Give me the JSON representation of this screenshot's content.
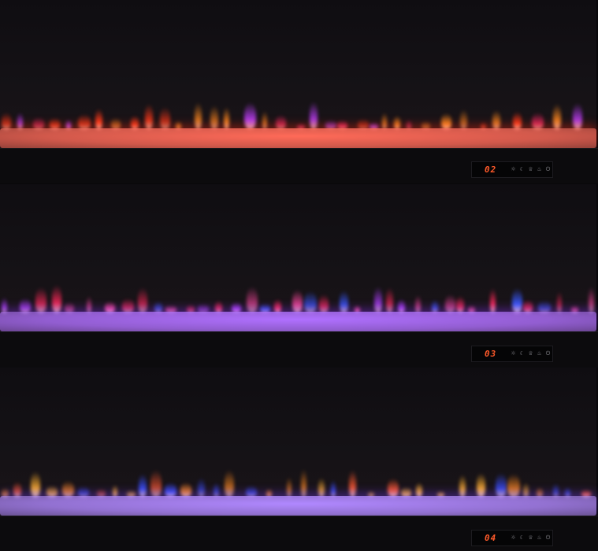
{
  "panels": [
    {
      "mode": "02",
      "flame_colors": [
        "#ff3a1a",
        "#ff8a20",
        "#ff2a6a",
        "#c040ff"
      ],
      "bed_color": "#ff6a58",
      "glow": "#ff2a10"
    },
    {
      "mode": "03",
      "flame_colors": [
        "#ff2a5a",
        "#ff4aa0",
        "#3a5aff",
        "#b040ff"
      ],
      "bed_color": "#b070ff",
      "glow": "#8a30ff"
    },
    {
      "mode": "04",
      "flame_colors": [
        "#ff8a20",
        "#ffb030",
        "#3a50ff",
        "#ff5a30"
      ],
      "bed_color": "#b088ff",
      "glow": "#7a40ff"
    }
  ],
  "control_icons": [
    "brightness-icon",
    "timer-moon-icon",
    "flame-icon",
    "heat-icon",
    "power-icon"
  ],
  "control_glyphs": [
    "☼",
    "☾",
    "♕",
    "♨",
    "⏻"
  ],
  "display_color": "#ff5a2a"
}
